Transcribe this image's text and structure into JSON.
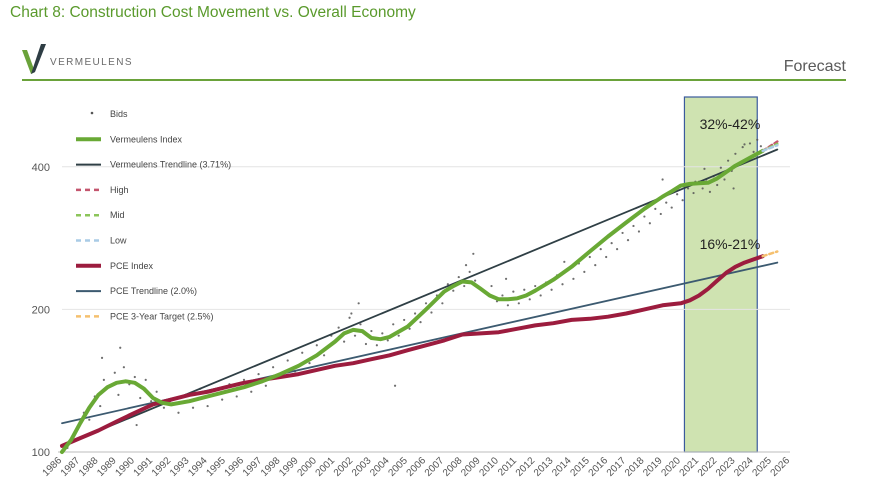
{
  "header": {
    "chart_title": "Chart 8: Construction Cost Movement vs. Overall Economy",
    "logo_text": "VERMEULENS",
    "forecast_label": "Forecast"
  },
  "colors": {
    "index_green": "#69a935",
    "trend_dark": "#2f3f45",
    "pce_red": "#9c1c3e",
    "pce_trend": "#3c5a70",
    "high": "#c4556e",
    "mid": "#8cc55a",
    "low": "#a9cbe6",
    "target": "#f5c06f",
    "bids": "#555555",
    "forecast_fill": "#cfe3b1",
    "forecast_border": "#3a5a9c"
  },
  "chart_data": {
    "type": "line",
    "title": "Chart 8: Construction Cost Movement vs. Overall Economy",
    "xlabel": "",
    "ylabel": "",
    "x_ticks": [
      "1986",
      "1987",
      "1988",
      "1989",
      "1990",
      "1991",
      "1992",
      "1993",
      "1994",
      "1995",
      "1996",
      "1997",
      "1998",
      "1999",
      "2000",
      "2001",
      "2002",
      "2003",
      "2004",
      "2005",
      "2006",
      "2007",
      "2008",
      "2009",
      "2010",
      "2011",
      "2012",
      "2013",
      "2014",
      "2015",
      "2016",
      "2017",
      "2018",
      "2019",
      "2020",
      "2021",
      "2022",
      "2023",
      "2024",
      "2025",
      "2026"
    ],
    "y_ticks": [
      100,
      200,
      400
    ],
    "y_scale": "log",
    "xlim": [
      1986,
      2026
    ],
    "ylim": [
      100,
      540
    ],
    "annotations": [
      {
        "label": "32%-42%",
        "x": 2022.7,
        "y": 480
      },
      {
        "label": "16%-21%",
        "x": 2022.7,
        "y": 268
      }
    ],
    "forecast_region": [
      2020.2,
      2024.2
    ],
    "legend": [
      {
        "label": "Bids",
        "style": "dots",
        "color": "#555555"
      },
      {
        "label": "Vermeulens Index",
        "style": "thick",
        "color": "#69a935"
      },
      {
        "label": "Vermeulens Trendline (3.71%)",
        "style": "solid",
        "color": "#2f3f45"
      },
      {
        "label": "High",
        "style": "dash",
        "color": "#c4556e"
      },
      {
        "label": "Mid",
        "style": "dash",
        "color": "#8cc55a"
      },
      {
        "label": "Low",
        "style": "dash",
        "color": "#a9cbe6"
      },
      {
        "label": "PCE Index",
        "style": "thick",
        "color": "#9c1c3e"
      },
      {
        "label": "PCE Trendline (2.0%)",
        "style": "solid",
        "color": "#3c5a70"
      },
      {
        "label": "PCE 3-Year Target (2.5%)",
        "style": "dash",
        "color": "#f5c06f"
      }
    ],
    "series": [
      {
        "name": "Vermeulens Index",
        "x": [
          1986,
          1986.5,
          1987,
          1987.5,
          1988,
          1988.5,
          1989,
          1989.5,
          1990,
          1990.5,
          1991,
          1991.5,
          1992,
          1993,
          1994,
          1995,
          1996,
          1997,
          1998,
          1999,
          2000,
          2001,
          2001.5,
          2002,
          2002.5,
          2003,
          2003.5,
          2004,
          2005,
          2006,
          2007,
          2007.5,
          2008,
          2008.5,
          2009,
          2009.5,
          2010,
          2010.5,
          2011,
          2011.5,
          2012,
          2013,
          2014,
          2015,
          2016,
          2017,
          2018,
          2019,
          2019.5,
          2020,
          2020.5,
          2021,
          2021.5,
          2022,
          2022.5,
          2023,
          2023.5,
          2024,
          2024.5
        ],
        "y": [
          100,
          106,
          115,
          124,
          132,
          137,
          140,
          141,
          140,
          136,
          130,
          127,
          126,
          128,
          131,
          134,
          137,
          141,
          146,
          152,
          160,
          171,
          178,
          181,
          180,
          174,
          173,
          175,
          184,
          200,
          218,
          224,
          229,
          228,
          221,
          214,
          210,
          210,
          211,
          214,
          219,
          231,
          246,
          265,
          285,
          305,
          326,
          346,
          355,
          365,
          368,
          369,
          370,
          378,
          390,
          402,
          412,
          422,
          432
        ]
      },
      {
        "name": "PCE Index",
        "x": [
          1986,
          1987,
          1988,
          1989,
          1990,
          1991,
          1992,
          1993,
          1994,
          1995,
          1996,
          1997,
          1998,
          1999,
          2000,
          2001,
          2002,
          2003,
          2004,
          2005,
          2006,
          2007,
          2008,
          2009,
          2010,
          2011,
          2012,
          2013,
          2014,
          2015,
          2016,
          2017,
          2018,
          2019,
          2020,
          2020.5,
          2021,
          2021.5,
          2022,
          2022.5,
          2023,
          2023.5,
          2024,
          2024.5
        ],
        "y": [
          103,
          107,
          111,
          116,
          121,
          126,
          129,
          132,
          134,
          137,
          140,
          142,
          144,
          146,
          149,
          152,
          154,
          157,
          160,
          164,
          168,
          172,
          177,
          178,
          179,
          182,
          185,
          187,
          190,
          191,
          193,
          196,
          200,
          204,
          206,
          209,
          214,
          221,
          230,
          239,
          246,
          251,
          255,
          259
        ]
      },
      {
        "name": "Vermeulens Trendline (3.71%)",
        "x": [
          1986,
          2025.3
        ],
        "y": [
          103,
          435
        ]
      },
      {
        "name": "PCE Trendline (2.0%)",
        "x": [
          1986,
          2025.3
        ],
        "y": [
          115,
          251
        ]
      },
      {
        "name": "High",
        "x": [
          2024.5,
          2025.3
        ],
        "y": [
          432,
          452
        ]
      },
      {
        "name": "Mid",
        "x": [
          2024.5,
          2025.3
        ],
        "y": [
          432,
          447
        ]
      },
      {
        "name": "Low",
        "x": [
          2024.5,
          2025.3
        ],
        "y": [
          432,
          444
        ]
      },
      {
        "name": "PCE 3-Year Target (2.5%)",
        "x": [
          2024.5,
          2025.3
        ],
        "y": [
          259,
          265
        ]
      }
    ],
    "scatter": {
      "name": "Bids",
      "x": [
        1986.3,
        1986.8,
        1987.2,
        1987.5,
        1987.8,
        1988.1,
        1988.3,
        1988.6,
        1988.9,
        1989.1,
        1989.4,
        1989.7,
        1990.0,
        1990.3,
        1990.6,
        1990.9,
        1991.2,
        1991.6,
        1992.0,
        1992.4,
        1992.8,
        1993.2,
        1993.6,
        1994.0,
        1994.4,
        1994.8,
        1995.2,
        1995.6,
        1996.0,
        1996.4,
        1996.8,
        1997.2,
        1997.6,
        1998.0,
        1998.4,
        1998.8,
        1999.2,
        1999.6,
        2000.0,
        2000.4,
        2000.8,
        2001.2,
        2001.5,
        2001.8,
        2002.1,
        2002.4,
        2002.7,
        2003.0,
        2003.3,
        2003.6,
        2003.9,
        2004.2,
        2004.5,
        2004.8,
        2005.1,
        2005.4,
        2005.7,
        2006.0,
        2006.3,
        2006.6,
        2006.9,
        2007.2,
        2007.5,
        2007.8,
        2008.1,
        2008.4,
        2008.7,
        2009.0,
        2009.3,
        2009.6,
        2009.9,
        2010.2,
        2010.5,
        2010.8,
        2011.1,
        2011.4,
        2011.7,
        2012.0,
        2012.3,
        2012.6,
        2012.9,
        2013.2,
        2013.5,
        2013.8,
        2014.1,
        2014.4,
        2014.7,
        2015.0,
        2015.3,
        2015.6,
        2015.9,
        2016.2,
        2016.5,
        2016.8,
        2017.1,
        2017.4,
        2017.7,
        2018.0,
        2018.3,
        2018.6,
        2018.9,
        2019.2,
        2019.5,
        2019.8,
        2020.1,
        2020.4,
        2020.7,
        2021.0,
        2021.2,
        2021.4,
        2021.6,
        2021.8,
        2022.0,
        2022.2,
        2022.4,
        2022.6,
        2022.8,
        2023.0,
        2023.2,
        2023.4,
        2023.6,
        2023.8,
        2024.0,
        2024.2,
        2024.4,
        1988.2,
        1989.2,
        1990.1,
        2002.3,
        2004.3,
        2008.2,
        2008.6,
        2010.4,
        2021.3,
        2022.9,
        2023.5,
        2020.8,
        2019.0,
        2013.6,
        2001.9
      ],
      "y": [
        102,
        111,
        121,
        117,
        131,
        125,
        142,
        138,
        147,
        132,
        151,
        139,
        144,
        130,
        142,
        128,
        134,
        124,
        129,
        121,
        132,
        124,
        136,
        125,
        135,
        129,
        139,
        131,
        142,
        134,
        146,
        138,
        151,
        144,
        156,
        148,
        162,
        154,
        168,
        160,
        176,
        183,
        171,
        192,
        176,
        186,
        169,
        180,
        168,
        178,
        172,
        186,
        176,
        190,
        182,
        196,
        188,
        206,
        197,
        214,
        206,
        226,
        219,
        234,
        224,
        240,
        230,
        222,
        216,
        224,
        208,
        214,
        204,
        218,
        206,
        220,
        210,
        224,
        214,
        228,
        220,
        236,
        226,
        242,
        232,
        250,
        240,
        258,
        248,
        268,
        258,
        276,
        268,
        290,
        280,
        300,
        292,
        314,
        304,
        326,
        318,
        336,
        328,
        350,
        340,
        360,
        352,
        372,
        360,
        376,
        354,
        382,
        366,
        398,
        376,
        412,
        392,
        426,
        404,
        440,
        414,
        448,
        430,
        456,
        442,
        158,
        166,
        114,
        206,
        138,
        248,
        262,
        232,
        396,
        360,
        446,
        372,
        376,
        252,
        196
      ]
    }
  }
}
